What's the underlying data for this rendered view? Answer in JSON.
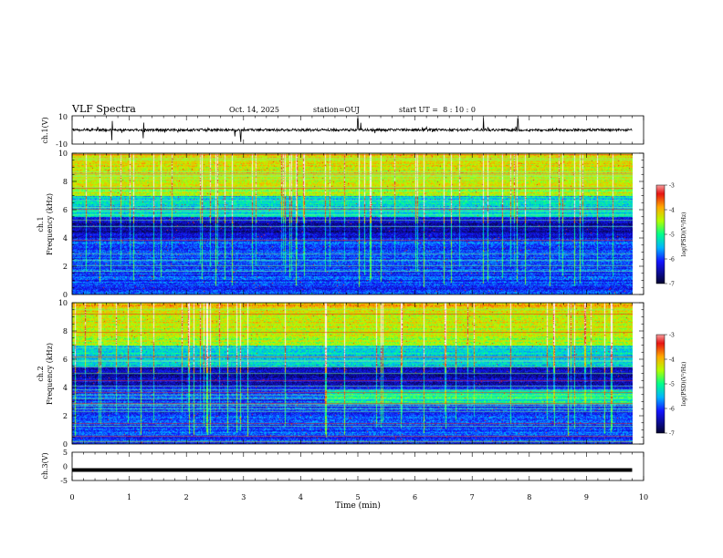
{
  "header": {
    "title": "VLF Spectra",
    "date": "Oct. 14, 2025",
    "station": "station=OUJ",
    "start_time": "start UT =  8 : 10 : 0"
  },
  "chart_data": [
    {
      "type": "line",
      "name": "ch1-waveform",
      "ylabel": "ch.1(V)",
      "ylim": [
        -10,
        10
      ],
      "yticks": [
        "10",
        "-10"
      ],
      "baseline": 0,
      "notes": "noisy waveform centred near 0 V with occasional impulsive spikes"
    },
    {
      "type": "heatmap",
      "name": "ch1-spectrogram",
      "ylabel": "ch.1 Frequency (kHz)",
      "ylim": [
        0,
        10
      ],
      "yticks": [
        "0",
        "2",
        "4",
        "6",
        "8",
        "10"
      ],
      "xlim": [
        0,
        10
      ],
      "data_extent_min": 9.8,
      "colorbar": {
        "label": "log(PSD)(V²/Hz)",
        "range": [
          -7,
          -3
        ],
        "ticks": [
          "-3",
          "-4",
          "-5",
          "-6",
          "-7"
        ]
      }
    },
    {
      "type": "heatmap",
      "name": "ch2-spectrogram",
      "ylabel": "ch.2 Frequency (kHz)",
      "ylim": [
        0,
        10
      ],
      "yticks": [
        "0",
        "2",
        "4",
        "6",
        "8",
        "10"
      ],
      "xlim": [
        0,
        10
      ],
      "data_extent_min": 9.8,
      "colorbar": {
        "label": "log(PSD)(V²/Hz)",
        "range": [
          -7,
          -3
        ],
        "ticks": [
          "-3",
          "-4",
          "-5",
          "-6",
          "-7"
        ]
      }
    },
    {
      "type": "line",
      "name": "ch3-waveform",
      "ylabel": "ch.3(V)",
      "ylim": [
        -5,
        5
      ],
      "yticks": [
        "5",
        "0",
        "-5"
      ],
      "level": -1.3,
      "xlabel": "Time (min)",
      "xlim": [
        0,
        10
      ],
      "xticks": [
        "0",
        "1",
        "2",
        "3",
        "4",
        "5",
        "6",
        "7",
        "8",
        "9",
        "10"
      ]
    }
  ],
  "colors": {
    "colormap": [
      "#000000",
      "#0a0a80",
      "#1414ff",
      "#00b4ff",
      "#00ff8c",
      "#b4ff00",
      "#ffaa00",
      "#e61414",
      "#fff0f0"
    ],
    "frame": "#000000"
  }
}
